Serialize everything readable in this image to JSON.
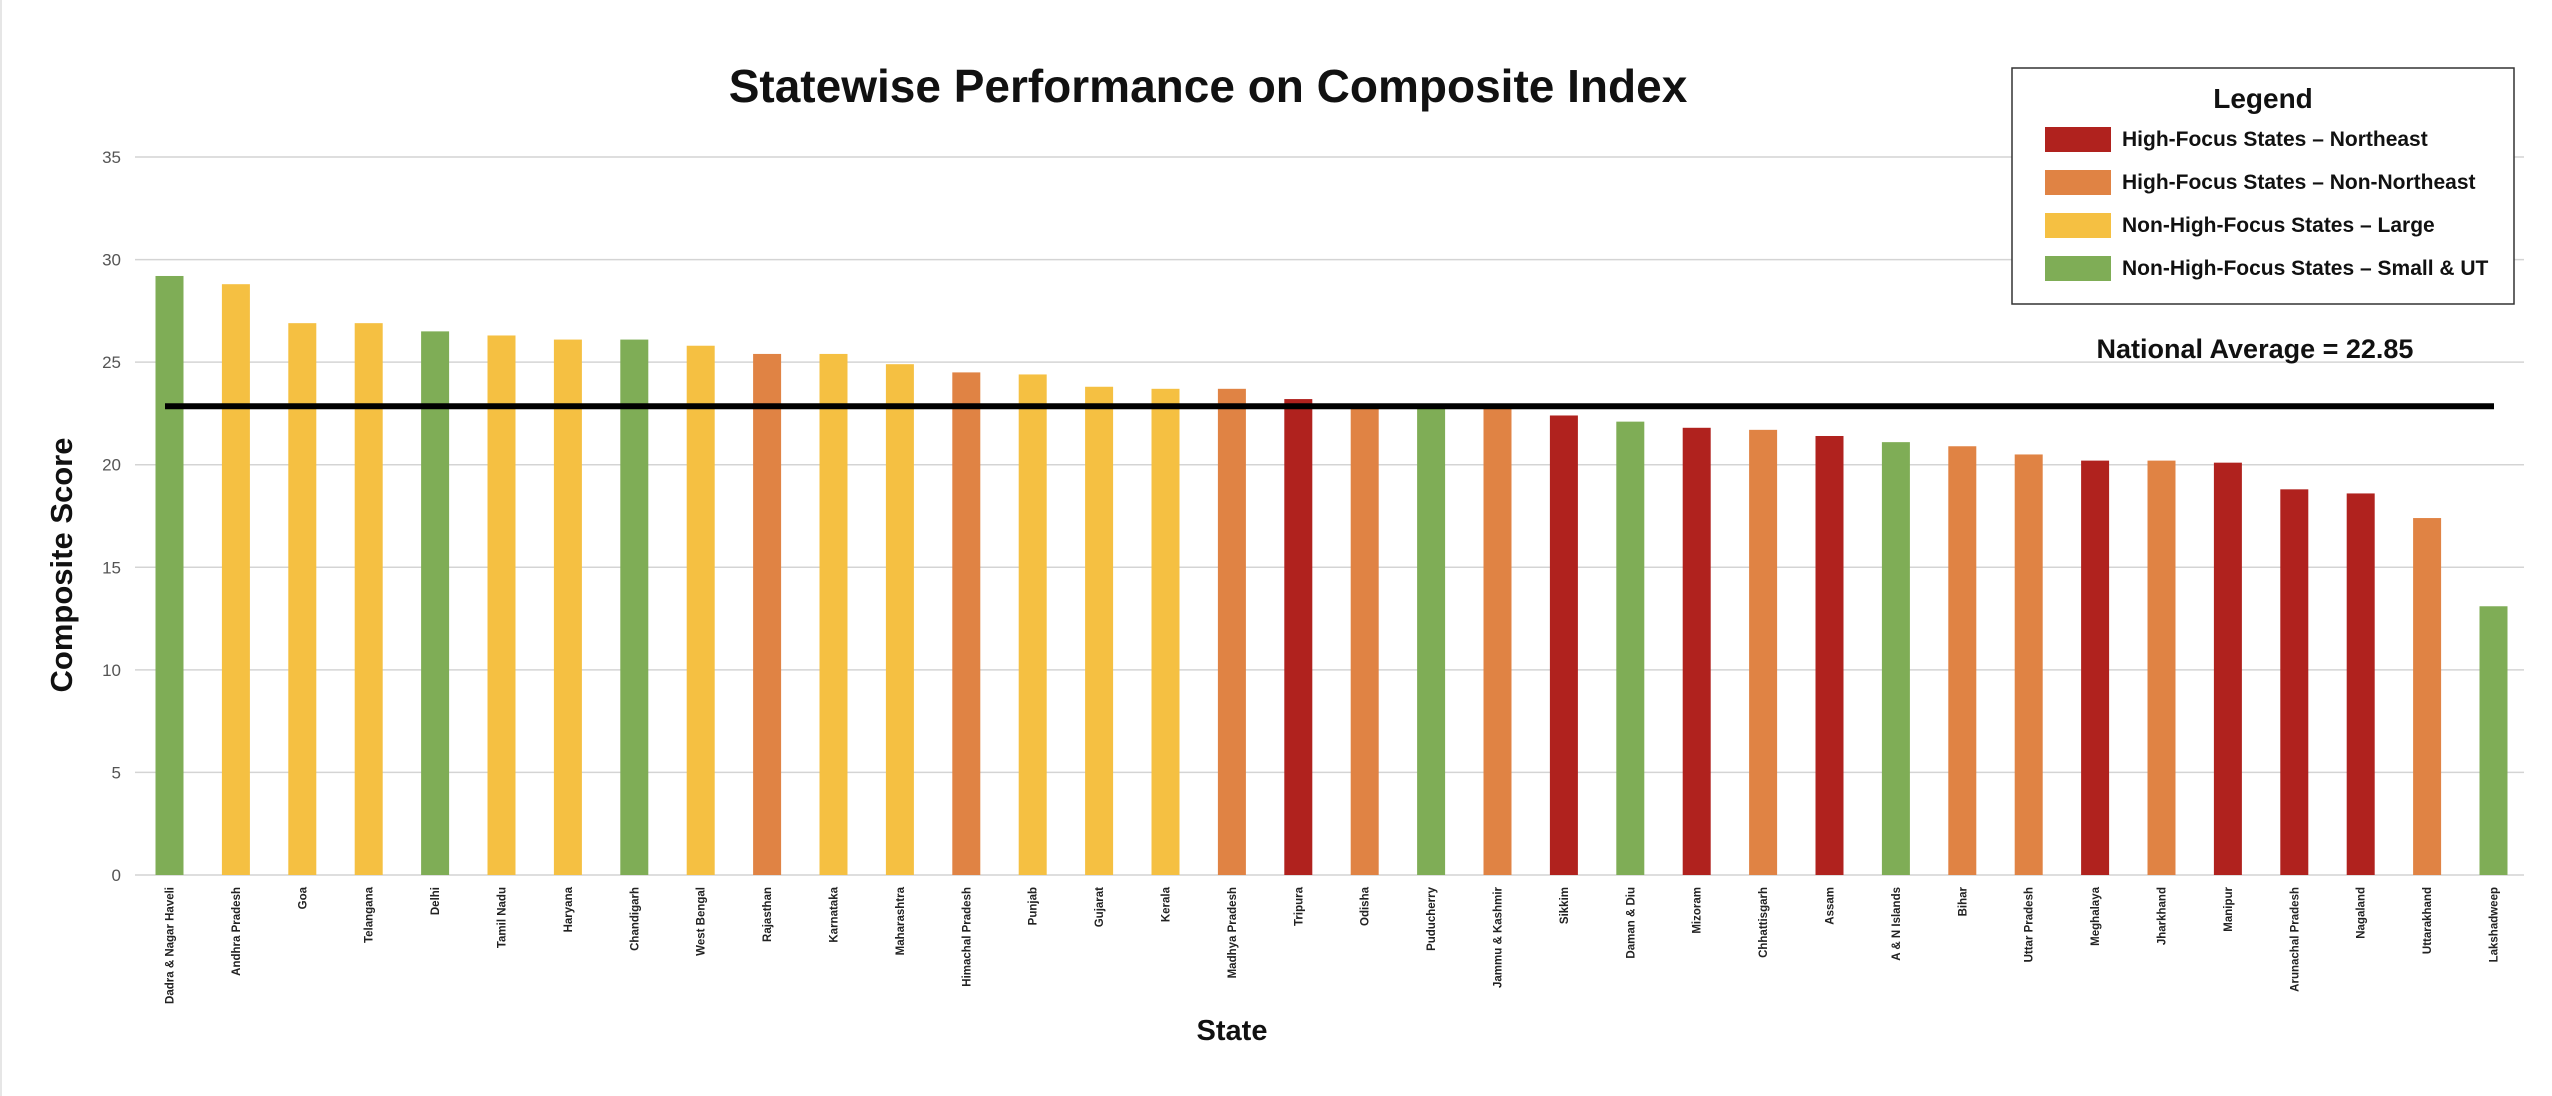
{
  "chart_data": {
    "type": "bar",
    "title": "Statewise Performance on Composite Index",
    "xlabel": "State",
    "ylabel": "Composite Score",
    "ylim": [
      0,
      35
    ],
    "yticks": [
      0,
      5,
      10,
      15,
      20,
      25,
      30,
      35
    ],
    "grid": true,
    "legend_title": "Legend",
    "legend_position": "top-right",
    "groups": [
      {
        "name": "High-Focus States – Northeast",
        "color": "#b0221e"
      },
      {
        "name": "High-Focus States – Non-Northeast",
        "color": "#e08344"
      },
      {
        "name": "Non-High-Focus States – Large",
        "color": "#f5c042"
      },
      {
        "name": "Non-High-Focus States – Small & UT",
        "color": "#7fad56"
      }
    ],
    "categories": [
      "Dadra & Nagar Haveli",
      "Andhra Pradesh",
      "Goa",
      "Telangana",
      "Delhi",
      "Tamil Nadu",
      "Haryana",
      "Chandigarh",
      "West Bengal",
      "Rajasthan",
      "Karnataka",
      "Maharashtra",
      "Himachal Pradesh",
      "Punjab",
      "Gujarat",
      "Kerala",
      "Madhya Pradesh",
      "Tripura",
      "Odisha",
      "Puducherry",
      "Jammu & Kashmir",
      "Sikkim",
      "Daman & Diu",
      "Mizoram",
      "Chhattisgarh",
      "Assam",
      "A & N Islands",
      "Bihar",
      "Uttar Pradesh",
      "Meghalaya",
      "Jharkhand",
      "Manipur",
      "Arunachal Pradesh",
      "Nagaland",
      "Uttarakhand",
      "Lakshadweep"
    ],
    "values": [
      29.2,
      28.8,
      26.9,
      26.9,
      26.5,
      26.3,
      26.1,
      26.1,
      25.8,
      25.4,
      25.4,
      24.9,
      24.5,
      24.4,
      23.8,
      23.7,
      23.7,
      23.2,
      22.9,
      22.9,
      22.8,
      22.4,
      22.1,
      21.8,
      21.7,
      21.4,
      21.1,
      20.9,
      20.5,
      20.2,
      20.2,
      20.1,
      18.8,
      18.6,
      17.4,
      13.1
    ],
    "group_index": [
      3,
      2,
      2,
      2,
      3,
      2,
      2,
      3,
      2,
      1,
      2,
      2,
      1,
      2,
      2,
      2,
      1,
      0,
      1,
      3,
      1,
      0,
      3,
      0,
      1,
      0,
      3,
      1,
      1,
      0,
      1,
      0,
      0,
      0,
      1,
      3
    ],
    "reference_line": {
      "label": "National Average = 22.85",
      "value": 22.85
    }
  }
}
